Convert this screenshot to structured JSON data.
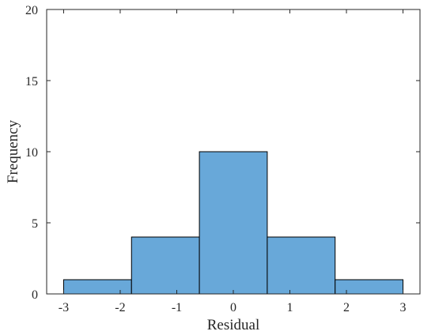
{
  "chart_data": {
    "type": "bar",
    "subtype": "histogram",
    "title": "",
    "xlabel": "Residual",
    "ylabel": "Frequency",
    "bin_edges": [
      -3,
      -1.8,
      -0.6,
      0.6,
      1.8,
      3
    ],
    "values": [
      1,
      4,
      10,
      4,
      1
    ],
    "xlim": [
      -3.3,
      3.3
    ],
    "ylim": [
      0,
      20
    ],
    "xticks": [
      -3,
      -2,
      -1,
      0,
      1,
      2,
      3
    ],
    "yticks": [
      0,
      5,
      10,
      15,
      20
    ],
    "xtick_labels": [
      "-3",
      "-2",
      "-1",
      "0",
      "1",
      "2",
      "3"
    ],
    "ytick_labels": [
      "0",
      "5",
      "10",
      "15",
      "20"
    ],
    "bar_color": "#68a8d9",
    "edge_color": "#000000",
    "grid": false,
    "box": true
  }
}
